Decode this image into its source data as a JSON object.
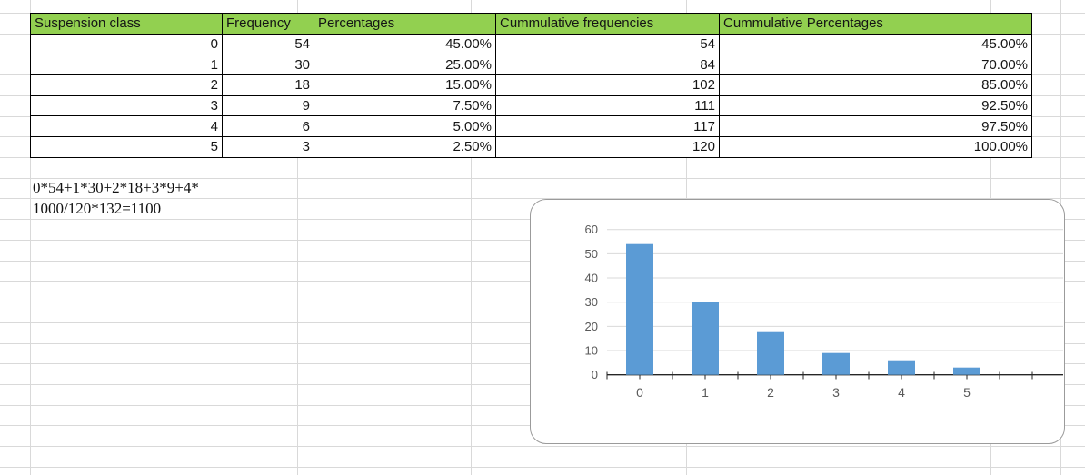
{
  "table": {
    "headers": [
      "Suspension class",
      "Frequency",
      "Percentages",
      "Cummulative frequencies",
      "Cummulative Percentages"
    ],
    "rows": [
      [
        "0",
        "54",
        "45.00%",
        "54",
        "45.00%"
      ],
      [
        "1",
        "30",
        "25.00%",
        "84",
        "70.00%"
      ],
      [
        "2",
        "18",
        "15.00%",
        "102",
        "85.00%"
      ],
      [
        "3",
        "9",
        "7.50%",
        "111",
        "92.50%"
      ],
      [
        "4",
        "6",
        "5.00%",
        "117",
        "97.50%"
      ],
      [
        "5",
        "3",
        "2.50%",
        "120",
        "100.00%"
      ]
    ]
  },
  "notes": {
    "line1": "0*54+1*30+2*18+3*9+4*",
    "line2": "1000/120*132=1100"
  },
  "chart_data": {
    "type": "bar",
    "categories": [
      "0",
      "1",
      "2",
      "3",
      "4",
      "5"
    ],
    "values": [
      54,
      30,
      18,
      9,
      6,
      3
    ],
    "title": "",
    "xlabel": "",
    "ylabel": "",
    "ylim": [
      0,
      60
    ],
    "yticks": [
      0,
      10,
      20,
      30,
      40,
      50,
      60
    ],
    "axis_slots": 7,
    "grid": true,
    "legend": "none"
  },
  "colors": {
    "header_green": "#92D050",
    "bar_blue": "#5B9BD5",
    "sheet_gridline": "#d9d9d9",
    "chart_gridline": "#d9d9d9",
    "axis_line": "#262626",
    "tick_label": "#595959"
  }
}
